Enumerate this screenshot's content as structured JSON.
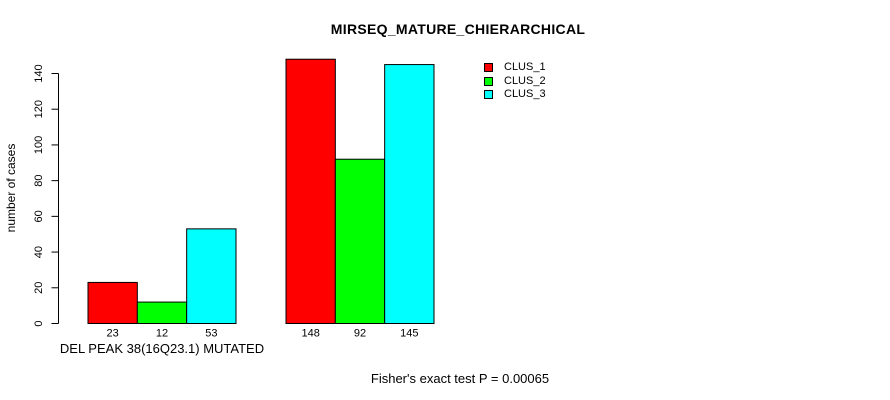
{
  "chart_data": {
    "type": "bar",
    "title": "MIRSEQ_MATURE_CHIERARCHICAL",
    "ylabel": "number of cases",
    "xlabel": "",
    "ylim": [
      0,
      148
    ],
    "yticks": [
      0,
      20,
      40,
      60,
      80,
      100,
      120,
      140
    ],
    "grid": false,
    "legend_position": "top-right",
    "bar_value_labels_shown": true,
    "series": [
      {
        "name": "CLUS_1",
        "color": "#ff0000"
      },
      {
        "name": "CLUS_2",
        "color": "#00ff00"
      },
      {
        "name": "CLUS_3",
        "color": "#00ffff"
      }
    ],
    "groups": [
      {
        "label": "DEL PEAK 38(16Q23.1) MUTATED",
        "values": [
          23,
          12,
          53
        ]
      },
      {
        "label": "",
        "values": [
          148,
          92,
          145
        ]
      }
    ]
  },
  "footer": {
    "text": "Fisher's exact test P = 0.00065"
  },
  "colors": {
    "axis": "#000000",
    "bar_border": "#000000",
    "text": "#000000",
    "background": "#ffffff"
  }
}
